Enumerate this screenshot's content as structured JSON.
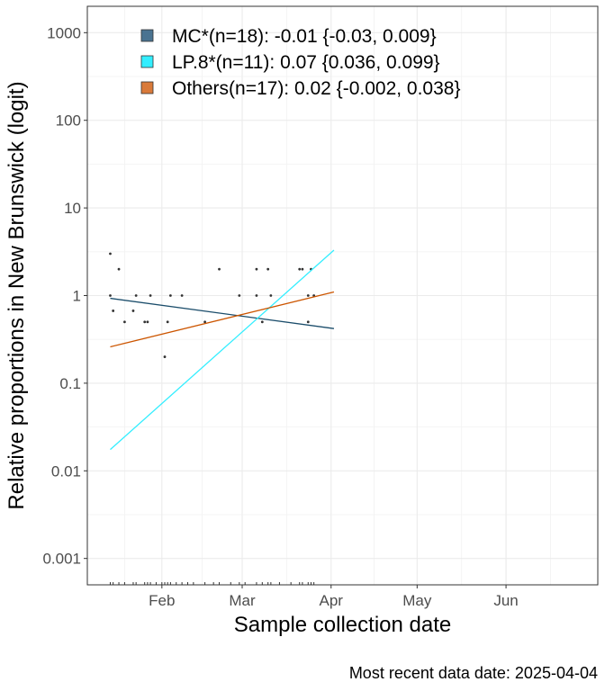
{
  "chart_data": {
    "type": "scatter",
    "title": "",
    "xlabel": "Sample collection date",
    "ylabel": "Relative proportions in New Brunswick (logit)",
    "caption": "Most recent data date: 2025-04-04",
    "y_scale": "log10",
    "ylim": [
      0.0005,
      2000
    ],
    "xlim": [
      "2025-01-06",
      "2025-07-03"
    ],
    "y_ticks": [
      {
        "value": 0.001,
        "label": "0.001"
      },
      {
        "value": 0.01,
        "label": "0.01"
      },
      {
        "value": 0.1,
        "label": "0.1"
      },
      {
        "value": 1,
        "label": "1"
      },
      {
        "value": 10,
        "label": "10"
      },
      {
        "value": 100,
        "label": "100"
      },
      {
        "value": 1000,
        "label": "1000"
      }
    ],
    "x_ticks": [
      {
        "value": "2025-02-01",
        "label": "Feb"
      },
      {
        "value": "2025-03-01",
        "label": "Mar"
      },
      {
        "value": "2025-04-01",
        "label": "Apr"
      },
      {
        "value": "2025-05-01",
        "label": "May"
      },
      {
        "value": "2025-06-01",
        "label": "Jun"
      }
    ],
    "grid": true,
    "legend_position": "top-left",
    "series": [
      {
        "name": "MC*(n=18): -0.01 {-0.03, 0.009}",
        "color": "#4a7391",
        "line_color": "#1b4d6b",
        "fit": [
          {
            "x": "2025-01-14",
            "y": 0.93
          },
          {
            "x": "2025-04-02",
            "y": 0.42
          }
        ]
      },
      {
        "name": "LP.8*(n=11): 0.07 {0.036, 0.099}",
        "color": "#33eeff",
        "line_color": "#33eeff",
        "fit": [
          {
            "x": "2025-01-14",
            "y": 0.0175
          },
          {
            "x": "2025-04-02",
            "y": 3.3
          }
        ]
      },
      {
        "name": "Others(n=17): 0.02 {-0.002, 0.038}",
        "color": "#d97a3a",
        "line_color": "#cc5500",
        "fit": [
          {
            "x": "2025-01-14",
            "y": 0.26
          },
          {
            "x": "2025-04-02",
            "y": 1.1
          }
        ]
      }
    ],
    "points": [
      {
        "x": "2025-01-14",
        "y": 3
      },
      {
        "x": "2025-01-14",
        "y": 1
      },
      {
        "x": "2025-01-15",
        "y": 0.67
      },
      {
        "x": "2025-01-17",
        "y": 2
      },
      {
        "x": "2025-01-19",
        "y": 0.5
      },
      {
        "x": "2025-01-22",
        "y": 0.67
      },
      {
        "x": "2025-01-23",
        "y": 1
      },
      {
        "x": "2025-01-26",
        "y": 0.5
      },
      {
        "x": "2025-01-27",
        "y": 0.5
      },
      {
        "x": "2025-01-28",
        "y": 1
      },
      {
        "x": "2025-02-02",
        "y": 0.2
      },
      {
        "x": "2025-02-03",
        "y": 0.5
      },
      {
        "x": "2025-02-04",
        "y": 1
      },
      {
        "x": "2025-02-08",
        "y": 1
      },
      {
        "x": "2025-02-16",
        "y": 0.5
      },
      {
        "x": "2025-02-21",
        "y": 2
      },
      {
        "x": "2025-02-28",
        "y": 1
      },
      {
        "x": "2025-03-06",
        "y": 2
      },
      {
        "x": "2025-03-06",
        "y": 1
      },
      {
        "x": "2025-03-08",
        "y": 0.5
      },
      {
        "x": "2025-03-10",
        "y": 2
      },
      {
        "x": "2025-03-11",
        "y": 1
      },
      {
        "x": "2025-03-21",
        "y": 2
      },
      {
        "x": "2025-03-22",
        "y": 2
      },
      {
        "x": "2025-03-24",
        "y": 1
      },
      {
        "x": "2025-03-24",
        "y": 0.5
      },
      {
        "x": "2025-03-25",
        "y": 2
      },
      {
        "x": "2025-03-26",
        "y": 1
      }
    ],
    "rug_dates": [
      "2025-01-14",
      "2025-01-15",
      "2025-01-17",
      "2025-01-19",
      "2025-01-22",
      "2025-01-23",
      "2025-01-26",
      "2025-01-27",
      "2025-01-28",
      "2025-01-30",
      "2025-02-01",
      "2025-02-02",
      "2025-02-03",
      "2025-02-04",
      "2025-02-06",
      "2025-02-08",
      "2025-02-10",
      "2025-02-12",
      "2025-02-16",
      "2025-02-19",
      "2025-02-21",
      "2025-02-25",
      "2025-02-28",
      "2025-03-02",
      "2025-03-06",
      "2025-03-08",
      "2025-03-10",
      "2025-03-11",
      "2025-03-14",
      "2025-03-18",
      "2025-03-21",
      "2025-03-22",
      "2025-03-24",
      "2025-03-25",
      "2025-03-26"
    ]
  }
}
